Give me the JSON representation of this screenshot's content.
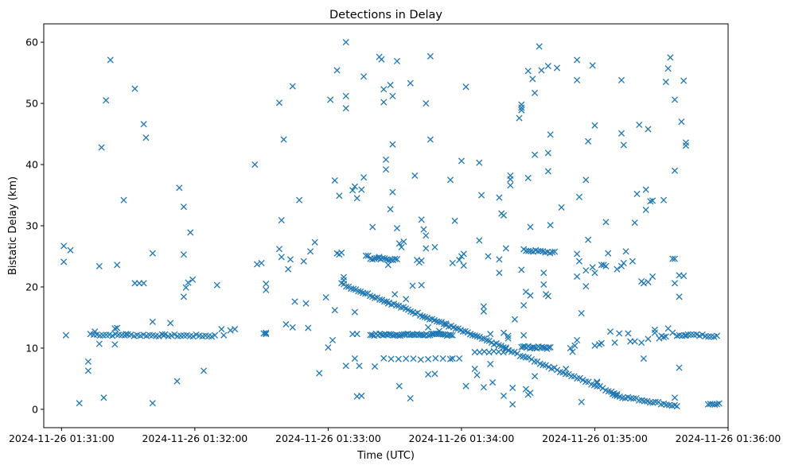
{
  "chart_data": {
    "type": "scatter",
    "title": "Detections in Delay",
    "xlabel": "Time (UTC)",
    "ylabel": "Bistatic Delay (km)",
    "marker": "x",
    "color": "#1f77b4",
    "x_unit": "seconds after 2024-11-26 01:31:00 UTC",
    "xlim": [
      -8,
      300
    ],
    "ylim": [
      -3,
      63
    ],
    "x_ticks": [
      {
        "value": 0,
        "label": "2024-11-26 01:31:00"
      },
      {
        "value": 60,
        "label": "2024-11-26 01:32:00"
      },
      {
        "value": 120,
        "label": "2024-11-26 01:33:00"
      },
      {
        "value": 180,
        "label": "2024-11-26 01:34:00"
      },
      {
        "value": 240,
        "label": "2024-11-26 01:35:00"
      },
      {
        "value": 300,
        "label": "2024-11-26 01:36:00"
      }
    ],
    "y_ticks": [
      {
        "value": 0,
        "label": "0"
      },
      {
        "value": 10,
        "label": "10"
      },
      {
        "value": 20,
        "label": "20"
      },
      {
        "value": 30,
        "label": "30"
      },
      {
        "value": 40,
        "label": "40"
      },
      {
        "value": 50,
        "label": "50"
      },
      {
        "value": 60,
        "label": "60"
      }
    ],
    "tracks": [
      {
        "name": "track-a",
        "x_start": 14.5,
        "y_start": 12.2,
        "x_end": 69,
        "y_end": 12.0,
        "count": 40
      },
      {
        "name": "track-b",
        "x_start": 139,
        "y_start": 12.2,
        "x_end": 176,
        "y_end": 12.2,
        "count": 45
      },
      {
        "name": "track-c",
        "x_start": 207,
        "y_start": 10.2,
        "x_end": 220,
        "y_end": 10.0,
        "count": 18
      },
      {
        "name": "track-d",
        "x_start": 278,
        "y_start": 12.2,
        "x_end": 295,
        "y_end": 12.0,
        "count": 14
      },
      {
        "name": "track-e",
        "x_start": 126,
        "y_start": 20.5,
        "x_end": 200,
        "y_end": 10.0,
        "count": 70
      },
      {
        "name": "track-f",
        "x_start": 200,
        "y_start": 9.8,
        "x_end": 250,
        "y_end": 2.5,
        "count": 40
      },
      {
        "name": "track-g",
        "x_start": 250,
        "y_start": 2.2,
        "x_end": 276,
        "y_end": 0.6,
        "count": 22
      },
      {
        "name": "track-h",
        "x_start": 139,
        "y_start": 24.6,
        "x_end": 151,
        "y_end": 24.5,
        "count": 14
      },
      {
        "name": "track-i",
        "x_start": 208,
        "y_start": 26.0,
        "x_end": 222,
        "y_end": 25.6,
        "count": 14
      },
      {
        "name": "track-j",
        "x_start": 145,
        "y_start": 8.3,
        "x_end": 175,
        "y_end": 8.2,
        "count": 10
      },
      {
        "name": "track-k",
        "x_start": 291,
        "y_start": 0.8,
        "x_end": 296,
        "y_end": 1.0,
        "count": 6
      },
      {
        "name": "track-l",
        "x_start": 186,
        "y_start": 9.2,
        "x_end": 201,
        "y_end": 9.5,
        "count": 8
      }
    ],
    "points": [
      [
        1,
        24.1
      ],
      [
        1,
        26.7
      ],
      [
        2,
        12.1
      ],
      [
        4,
        26.0
      ],
      [
        8,
        1.0
      ],
      [
        12,
        6.3
      ],
      [
        12,
        7.8
      ],
      [
        13,
        12.3
      ],
      [
        15,
        12.7
      ],
      [
        17,
        10.7
      ],
      [
        17,
        23.4
      ],
      [
        18,
        42.8
      ],
      [
        19,
        1.9
      ],
      [
        20,
        50.5
      ],
      [
        22,
        57.1
      ],
      [
        24,
        10.6
      ],
      [
        24,
        13.2
      ],
      [
        25,
        13.3
      ],
      [
        25,
        23.6
      ],
      [
        28,
        34.2
      ],
      [
        29,
        12.3
      ],
      [
        33,
        20.6
      ],
      [
        33,
        52.4
      ],
      [
        35,
        20.6
      ],
      [
        37,
        20.6
      ],
      [
        37,
        46.6
      ],
      [
        38,
        44.4
      ],
      [
        41,
        25.5
      ],
      [
        41,
        14.3
      ],
      [
        41,
        1.0
      ],
      [
        46,
        12.1
      ],
      [
        49,
        14.1
      ],
      [
        52,
        4.6
      ],
      [
        53,
        36.2
      ],
      [
        55,
        25.3
      ],
      [
        55,
        33.1
      ],
      [
        55,
        18.4
      ],
      [
        56,
        19.9
      ],
      [
        57,
        20.7
      ],
      [
        58,
        28.9
      ],
      [
        59,
        21.2
      ],
      [
        64,
        6.3
      ],
      [
        70,
        20.3
      ],
      [
        72,
        13.1
      ],
      [
        73,
        12.1
      ],
      [
        76,
        12.9
      ],
      [
        78,
        13.1
      ],
      [
        87,
        40.0
      ],
      [
        88,
        23.7
      ],
      [
        90,
        23.9
      ],
      [
        91,
        12.4
      ],
      [
        92,
        12.5
      ],
      [
        92,
        20.5
      ],
      [
        92,
        19.5
      ],
      [
        92,
        12.3
      ],
      [
        98,
        26.2
      ],
      [
        98,
        50.1
      ],
      [
        99,
        24.9
      ],
      [
        99,
        30.9
      ],
      [
        100,
        44.1
      ],
      [
        101,
        13.9
      ],
      [
        102,
        22.9
      ],
      [
        103,
        24.5
      ],
      [
        104,
        52.8
      ],
      [
        104,
        13.4
      ],
      [
        105,
        17.6
      ],
      [
        107,
        34.2
      ],
      [
        109,
        24.2
      ],
      [
        110,
        17.3
      ],
      [
        111,
        13.3
      ],
      [
        112,
        25.8
      ],
      [
        114,
        27.3
      ],
      [
        116,
        5.9
      ],
      [
        119,
        18.3
      ],
      [
        120,
        10.1
      ],
      [
        121,
        50.6
      ],
      [
        122,
        11.3
      ],
      [
        123,
        16.2
      ],
      [
        123,
        37.4
      ],
      [
        124,
        25.5
      ],
      [
        124,
        55.4
      ],
      [
        125,
        34.9
      ],
      [
        125,
        25.3
      ],
      [
        126,
        25.6
      ],
      [
        127,
        21.6
      ],
      [
        127,
        21.1
      ],
      [
        128,
        60.0
      ],
      [
        128,
        49.2
      ],
      [
        128,
        51.2
      ],
      [
        128,
        7.1
      ],
      [
        131,
        35.8
      ],
      [
        131,
        12.3
      ],
      [
        132,
        36.4
      ],
      [
        132,
        15.9
      ],
      [
        132,
        8.3
      ],
      [
        133,
        34.5
      ],
      [
        133,
        2.1
      ],
      [
        133,
        12.3
      ],
      [
        134,
        7.1
      ],
      [
        135,
        2.2
      ],
      [
        135,
        35.9
      ],
      [
        136,
        37.9
      ],
      [
        136,
        54.4
      ],
      [
        137,
        25.1
      ],
      [
        138,
        25.1
      ],
      [
        140,
        29.8
      ],
      [
        141,
        7.0
      ],
      [
        143,
        24.9
      ],
      [
        143,
        57.6
      ],
      [
        144,
        57.2
      ],
      [
        145,
        52.3
      ],
      [
        145,
        50.2
      ],
      [
        146,
        39.2
      ],
      [
        146,
        40.8
      ],
      [
        147,
        23.6
      ],
      [
        147,
        17.3
      ],
      [
        148,
        53.0
      ],
      [
        148,
        32.7
      ],
      [
        149,
        51.2
      ],
      [
        149,
        35.5
      ],
      [
        149,
        43.3
      ],
      [
        150,
        18.8
      ],
      [
        151,
        56.9
      ],
      [
        151,
        29.6
      ],
      [
        152,
        27.1
      ],
      [
        152,
        3.8
      ],
      [
        153,
        26.5
      ],
      [
        154,
        27.4
      ],
      [
        155,
        18.0
      ],
      [
        157,
        53.3
      ],
      [
        157,
        1.8
      ],
      [
        158,
        20.2
      ],
      [
        159,
        38.2
      ],
      [
        160,
        24.4
      ],
      [
        161,
        24.0
      ],
      [
        162,
        31.0
      ],
      [
        162,
        20.3
      ],
      [
        162,
        24.3
      ],
      [
        163,
        29.4
      ],
      [
        164,
        28.4
      ],
      [
        164,
        26.3
      ],
      [
        164,
        50.0
      ],
      [
        165,
        13.4
      ],
      [
        165,
        5.7
      ],
      [
        166,
        57.7
      ],
      [
        166,
        44.1
      ],
      [
        167,
        12.3
      ],
      [
        168,
        5.8
      ],
      [
        168,
        26.5
      ],
      [
        170,
        12.8
      ],
      [
        173,
        14.0
      ],
      [
        175,
        37.5
      ],
      [
        176,
        23.9
      ],
      [
        176,
        8.3
      ],
      [
        177,
        30.8
      ],
      [
        179,
        24.4
      ],
      [
        179,
        8.3
      ],
      [
        180,
        40.6
      ],
      [
        180,
        25.0
      ],
      [
        181,
        23.5
      ],
      [
        181,
        25.4
      ],
      [
        182,
        52.7
      ],
      [
        182,
        3.8
      ],
      [
        184,
        12.3
      ],
      [
        186,
        6.6
      ],
      [
        187,
        5.6
      ],
      [
        188,
        40.3
      ],
      [
        188,
        27.6
      ],
      [
        189,
        35.0
      ],
      [
        190,
        16.8
      ],
      [
        190,
        16.0
      ],
      [
        190,
        3.6
      ],
      [
        192,
        25.0
      ],
      [
        193,
        7.4
      ],
      [
        193,
        12.3
      ],
      [
        194,
        4.4
      ],
      [
        197,
        34.6
      ],
      [
        197,
        22.3
      ],
      [
        197,
        24.5
      ],
      [
        198,
        32.0
      ],
      [
        199,
        31.7
      ],
      [
        199,
        12.5
      ],
      [
        199,
        2.2
      ],
      [
        200,
        26.3
      ],
      [
        201,
        11.6
      ],
      [
        201,
        12.0
      ],
      [
        202,
        36.6
      ],
      [
        202,
        38.2
      ],
      [
        202,
        37.6
      ],
      [
        203,
        0.8
      ],
      [
        203,
        3.5
      ],
      [
        204,
        14.7
      ],
      [
        206,
        47.6
      ],
      [
        207,
        48.9
      ],
      [
        207,
        49.3
      ],
      [
        207,
        49.8
      ],
      [
        207,
        22.8
      ],
      [
        208,
        17.0
      ],
      [
        208,
        12.1
      ],
      [
        209,
        19.2
      ],
      [
        209,
        3.3
      ],
      [
        210,
        55.3
      ],
      [
        210,
        37.8
      ],
      [
        210,
        2.4
      ],
      [
        211,
        2.7
      ],
      [
        211,
        18.6
      ],
      [
        211,
        29.8
      ],
      [
        212,
        54.0
      ],
      [
        213,
        5.4
      ],
      [
        213,
        41.6
      ],
      [
        213,
        51.7
      ],
      [
        215,
        59.3
      ],
      [
        216,
        55.4
      ],
      [
        217,
        22.3
      ],
      [
        217,
        20.4
      ],
      [
        218,
        18.8
      ],
      [
        219,
        18.5
      ],
      [
        219,
        56.1
      ],
      [
        219,
        38.9
      ],
      [
        219,
        41.9
      ],
      [
        220,
        44.9
      ],
      [
        220,
        30.1
      ],
      [
        223,
        55.8
      ],
      [
        225,
        33.0
      ],
      [
        227,
        6.6
      ],
      [
        229,
        10.0
      ],
      [
        230,
        9.4
      ],
      [
        231,
        10.4
      ],
      [
        232,
        11.3
      ],
      [
        232,
        57.1
      ],
      [
        232,
        25.4
      ],
      [
        232,
        21.7
      ],
      [
        232,
        53.8
      ],
      [
        233,
        34.7
      ],
      [
        233,
        24.2
      ],
      [
        234,
        15.7
      ],
      [
        234,
        1.2
      ],
      [
        236,
        37.5
      ],
      [
        236,
        20.1
      ],
      [
        236,
        22.7
      ],
      [
        237,
        43.8
      ],
      [
        237,
        27.7
      ],
      [
        239,
        56.2
      ],
      [
        239,
        23.2
      ],
      [
        240,
        46.4
      ],
      [
        240,
        22.3
      ],
      [
        240,
        10.4
      ],
      [
        241,
        4.5
      ],
      [
        241,
        4.3
      ],
      [
        242,
        10.6
      ],
      [
        243,
        10.8
      ],
      [
        243,
        23.6
      ],
      [
        244,
        23.6
      ],
      [
        245,
        23.4
      ],
      [
        245,
        30.6
      ],
      [
        246,
        25.5
      ],
      [
        247,
        12.7
      ],
      [
        248,
        2.5
      ],
      [
        249,
        2.3
      ],
      [
        249,
        10.9
      ],
      [
        250,
        22.9
      ],
      [
        251,
        12.4
      ],
      [
        252,
        23.4
      ],
      [
        252,
        45.1
      ],
      [
        252,
        53.8
      ],
      [
        253,
        43.2
      ],
      [
        253,
        23.9
      ],
      [
        254,
        25.8
      ],
      [
        255,
        12.4
      ],
      [
        256,
        11.1
      ],
      [
        257,
        24.2
      ],
      [
        258,
        11.1
      ],
      [
        258,
        30.5
      ],
      [
        259,
        35.2
      ],
      [
        260,
        46.5
      ],
      [
        261,
        20.9
      ],
      [
        261,
        10.9
      ],
      [
        262,
        20.6
      ],
      [
        262,
        8.3
      ],
      [
        263,
        35.9
      ],
      [
        263,
        32.6
      ],
      [
        264,
        11.5
      ],
      [
        264,
        45.8
      ],
      [
        264,
        20.8
      ],
      [
        265,
        34.0
      ],
      [
        266,
        21.7
      ],
      [
        266,
        34.1
      ],
      [
        267,
        12.5
      ],
      [
        267,
        13.0
      ],
      [
        269,
        11.6
      ],
      [
        270,
        12.0
      ],
      [
        271,
        34.2
      ],
      [
        271,
        11.8
      ],
      [
        272,
        53.5
      ],
      [
        272,
        11.9
      ],
      [
        273,
        55.7
      ],
      [
        273,
        13.2
      ],
      [
        274,
        57.5
      ],
      [
        275,
        24.6
      ],
      [
        275,
        12.5
      ],
      [
        276,
        24.6
      ],
      [
        276,
        20.6
      ],
      [
        276,
        50.6
      ],
      [
        276,
        39.0
      ],
      [
        276,
        1.9
      ],
      [
        277,
        12.0
      ],
      [
        277,
        0.5
      ],
      [
        278,
        21.9
      ],
      [
        278,
        18.4
      ],
      [
        278,
        6.8
      ],
      [
        279,
        47.0
      ],
      [
        280,
        53.7
      ],
      [
        280,
        21.8
      ],
      [
        281,
        43.1
      ],
      [
        281,
        43.6
      ],
      [
        281,
        12.1
      ]
    ]
  }
}
